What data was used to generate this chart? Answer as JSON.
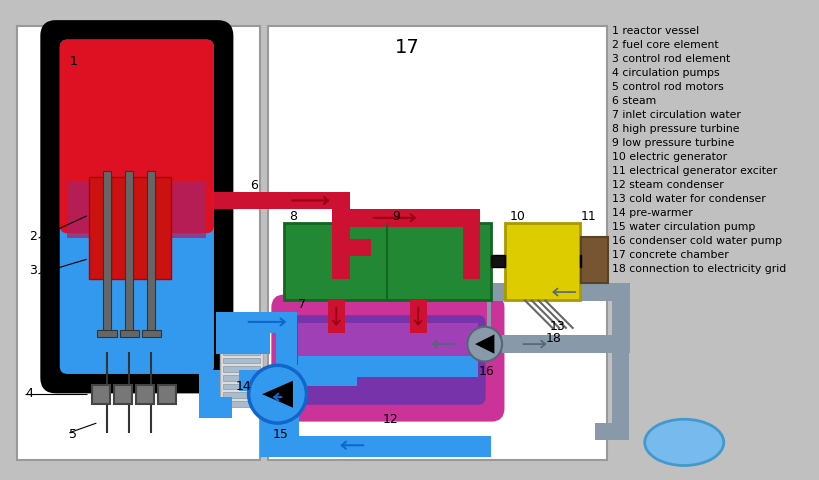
{
  "bg": "#c0c0c0",
  "white": "#ffffff",
  "black": "#000000",
  "red_steam": "#cc1133",
  "dark_red": "#990011",
  "blue_water": "#3399ee",
  "blue_dark": "#1166cc",
  "blue_light": "#55aaff",
  "green_turb": "#228833",
  "green_dark": "#116622",
  "yellow_gen": "#ddcc00",
  "brown_exc": "#664422",
  "magenta_cond": "#cc3399",
  "purple_cond": "#7733aa",
  "gray_cold": "#8899aa",
  "gray_dark": "#556677",
  "gray_mid": "#aaaaaa",
  "gray_light": "#dddddd",
  "legend_items": [
    "1 reactor vessel",
    "2 fuel core element",
    "3 control rod element",
    "4 circulation pumps",
    "5 control rod motors",
    "6 steam",
    "7 inlet circulation water",
    "8 high pressure turbine",
    "9 low pressure turbine",
    "10 electric generator",
    "11 electrical generator exciter",
    "12 steam condenser",
    "13 cold water for condenser",
    "14 pre-warmer",
    "15 water circulation pump",
    "16 condenser cold water pump",
    "17 concrete chamber",
    "18 connection to electricity grid"
  ]
}
